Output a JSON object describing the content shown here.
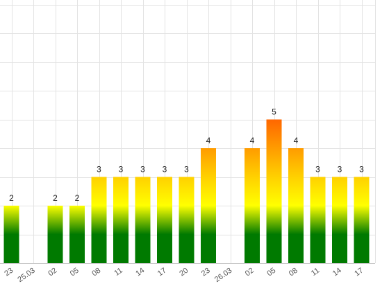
{
  "chart_data": {
    "type": "bar",
    "title": "",
    "xlabel": "",
    "ylabel": "",
    "ylim": [
      0,
      9
    ],
    "grid": true,
    "legend": "none",
    "categories": [
      "23",
      "25.03",
      "02",
      "05",
      "08",
      "11",
      "14",
      "17",
      "20",
      "23",
      "26.03",
      "02",
      "05",
      "08",
      "11",
      "14",
      "17"
    ],
    "values": [
      2,
      null,
      2,
      2,
      3,
      3,
      3,
      3,
      3,
      4,
      null,
      4,
      5,
      4,
      3,
      3,
      3
    ],
    "value_labels": [
      "2",
      "",
      "2",
      "2",
      "3",
      "3",
      "3",
      "3",
      "3",
      "4",
      "",
      "4",
      "5",
      "4",
      "3",
      "3",
      "3"
    ],
    "bar_gradient_colors": [
      "#007a00",
      "#ffff00",
      "#ff6600"
    ],
    "gradient_note_values": {
      "green_below": 1,
      "yellow_at": 2,
      "orange_at": 5
    }
  }
}
